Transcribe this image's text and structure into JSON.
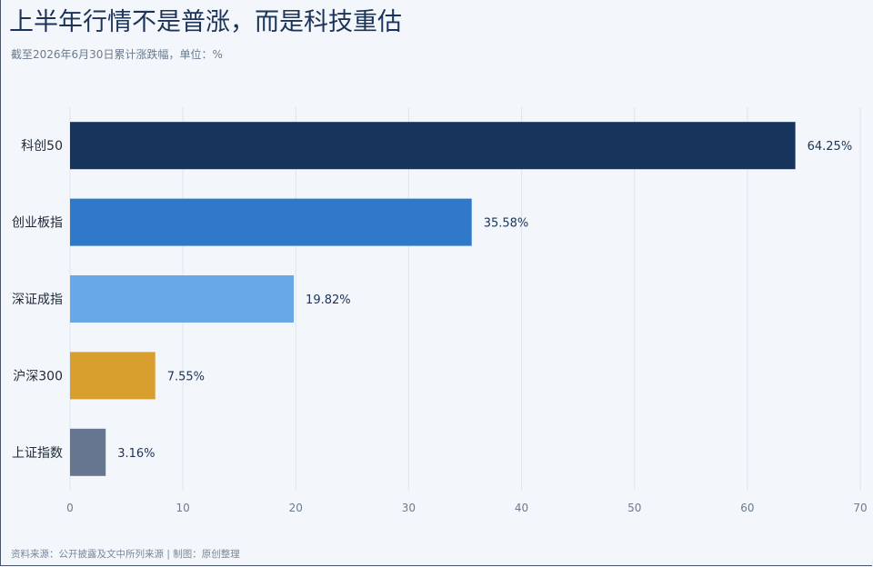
{
  "title": "上半年行情不是普涨，而是科技重估",
  "subtitle": "截至2026年6月30日累计涨跌幅，单位：%",
  "footer": "资料来源：公开披露及文中所列来源 | 制图：原创整理",
  "chart_data": {
    "type": "bar",
    "orientation": "horizontal",
    "categories": [
      "科创50",
      "创业板指",
      "深证成指",
      "沪深300",
      "上证指数"
    ],
    "values": [
      64.25,
      35.58,
      19.82,
      7.55,
      3.16
    ],
    "value_labels": [
      "64.25%",
      "35.58%",
      "19.82%",
      "7.55%",
      "3.16%"
    ],
    "colors": [
      "#17345c",
      "#3078c8",
      "#67a8e8",
      "#d89e2e",
      "#667690"
    ],
    "xlim": [
      0,
      70
    ],
    "xticks": [
      0,
      10,
      20,
      30,
      40,
      50,
      60,
      70
    ],
    "grid": "vertical"
  }
}
